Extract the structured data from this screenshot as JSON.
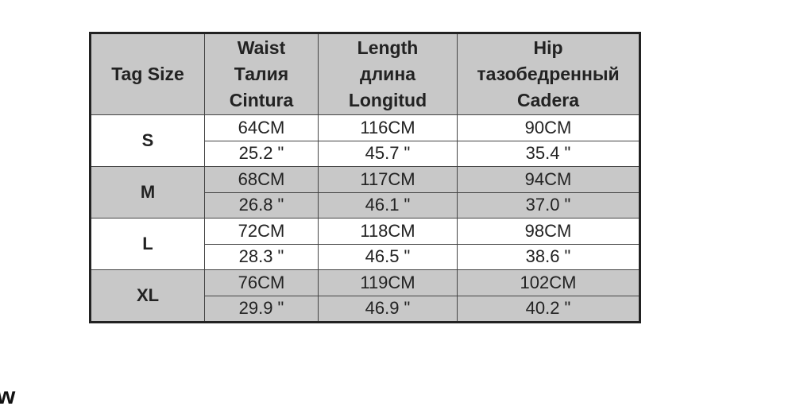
{
  "table": {
    "headers": [
      {
        "lines": [
          "Tag  Size"
        ]
      },
      {
        "lines": [
          "Waist",
          "Талия",
          "Cintura"
        ]
      },
      {
        "lines": [
          "Length",
          "длина",
          "Longitud"
        ]
      },
      {
        "lines": [
          "Hip",
          "тазобедренный",
          "Cadera"
        ]
      }
    ],
    "rows": [
      {
        "size": "S",
        "cm": [
          "64CM",
          "116CM",
          "90CM"
        ],
        "inch": [
          "25.2 \"",
          "45.7 \"",
          "35.4 \""
        ]
      },
      {
        "size": "M",
        "cm": [
          "68CM",
          "117CM",
          "94CM"
        ],
        "inch": [
          "26.8 \"",
          "46.1 \"",
          "37.0 \""
        ]
      },
      {
        "size": "L",
        "cm": [
          "72CM",
          "118CM",
          "98CM"
        ],
        "inch": [
          "28.3 \"",
          "46.5 \"",
          "38.6 \""
        ]
      },
      {
        "size": "XL",
        "cm": [
          "76CM",
          "119CM",
          "102CM"
        ],
        "inch": [
          "29.9 \"",
          "46.9 \"",
          "40.2 \""
        ]
      }
    ],
    "colors": {
      "shaded": "#c8c8c8",
      "border": "#222222"
    }
  },
  "fragment_text": "w"
}
